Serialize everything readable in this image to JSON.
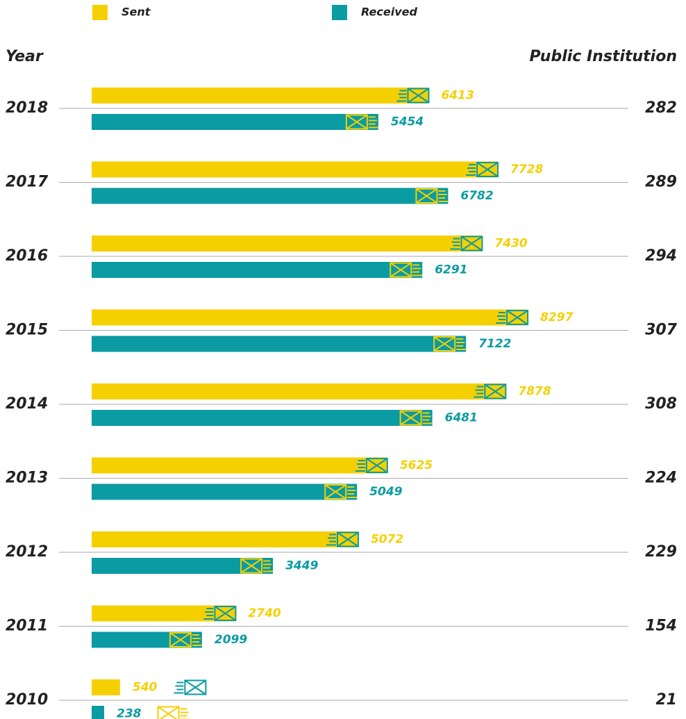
{
  "chart_data": {
    "type": "bar",
    "y_label": "Year",
    "categories": [
      "2018",
      "2017",
      "2016",
      "2015",
      "2014",
      "2013",
      "2012",
      "2011",
      "2010"
    ],
    "series": [
      {
        "name": "Sent",
        "color": "#f5d000",
        "values": [
          6413,
          7728,
          7430,
          8297,
          7878,
          5625,
          5072,
          2740,
          540
        ]
      },
      {
        "name": "Received",
        "color": "#0a9ba3",
        "values": [
          5454,
          6782,
          6291,
          7122,
          6481,
          5049,
          3449,
          2099,
          238
        ]
      }
    ],
    "public_institution": {
      "label": "Public Institution",
      "values": [
        282,
        289,
        294,
        307,
        308,
        224,
        229,
        154,
        21
      ]
    }
  }
}
